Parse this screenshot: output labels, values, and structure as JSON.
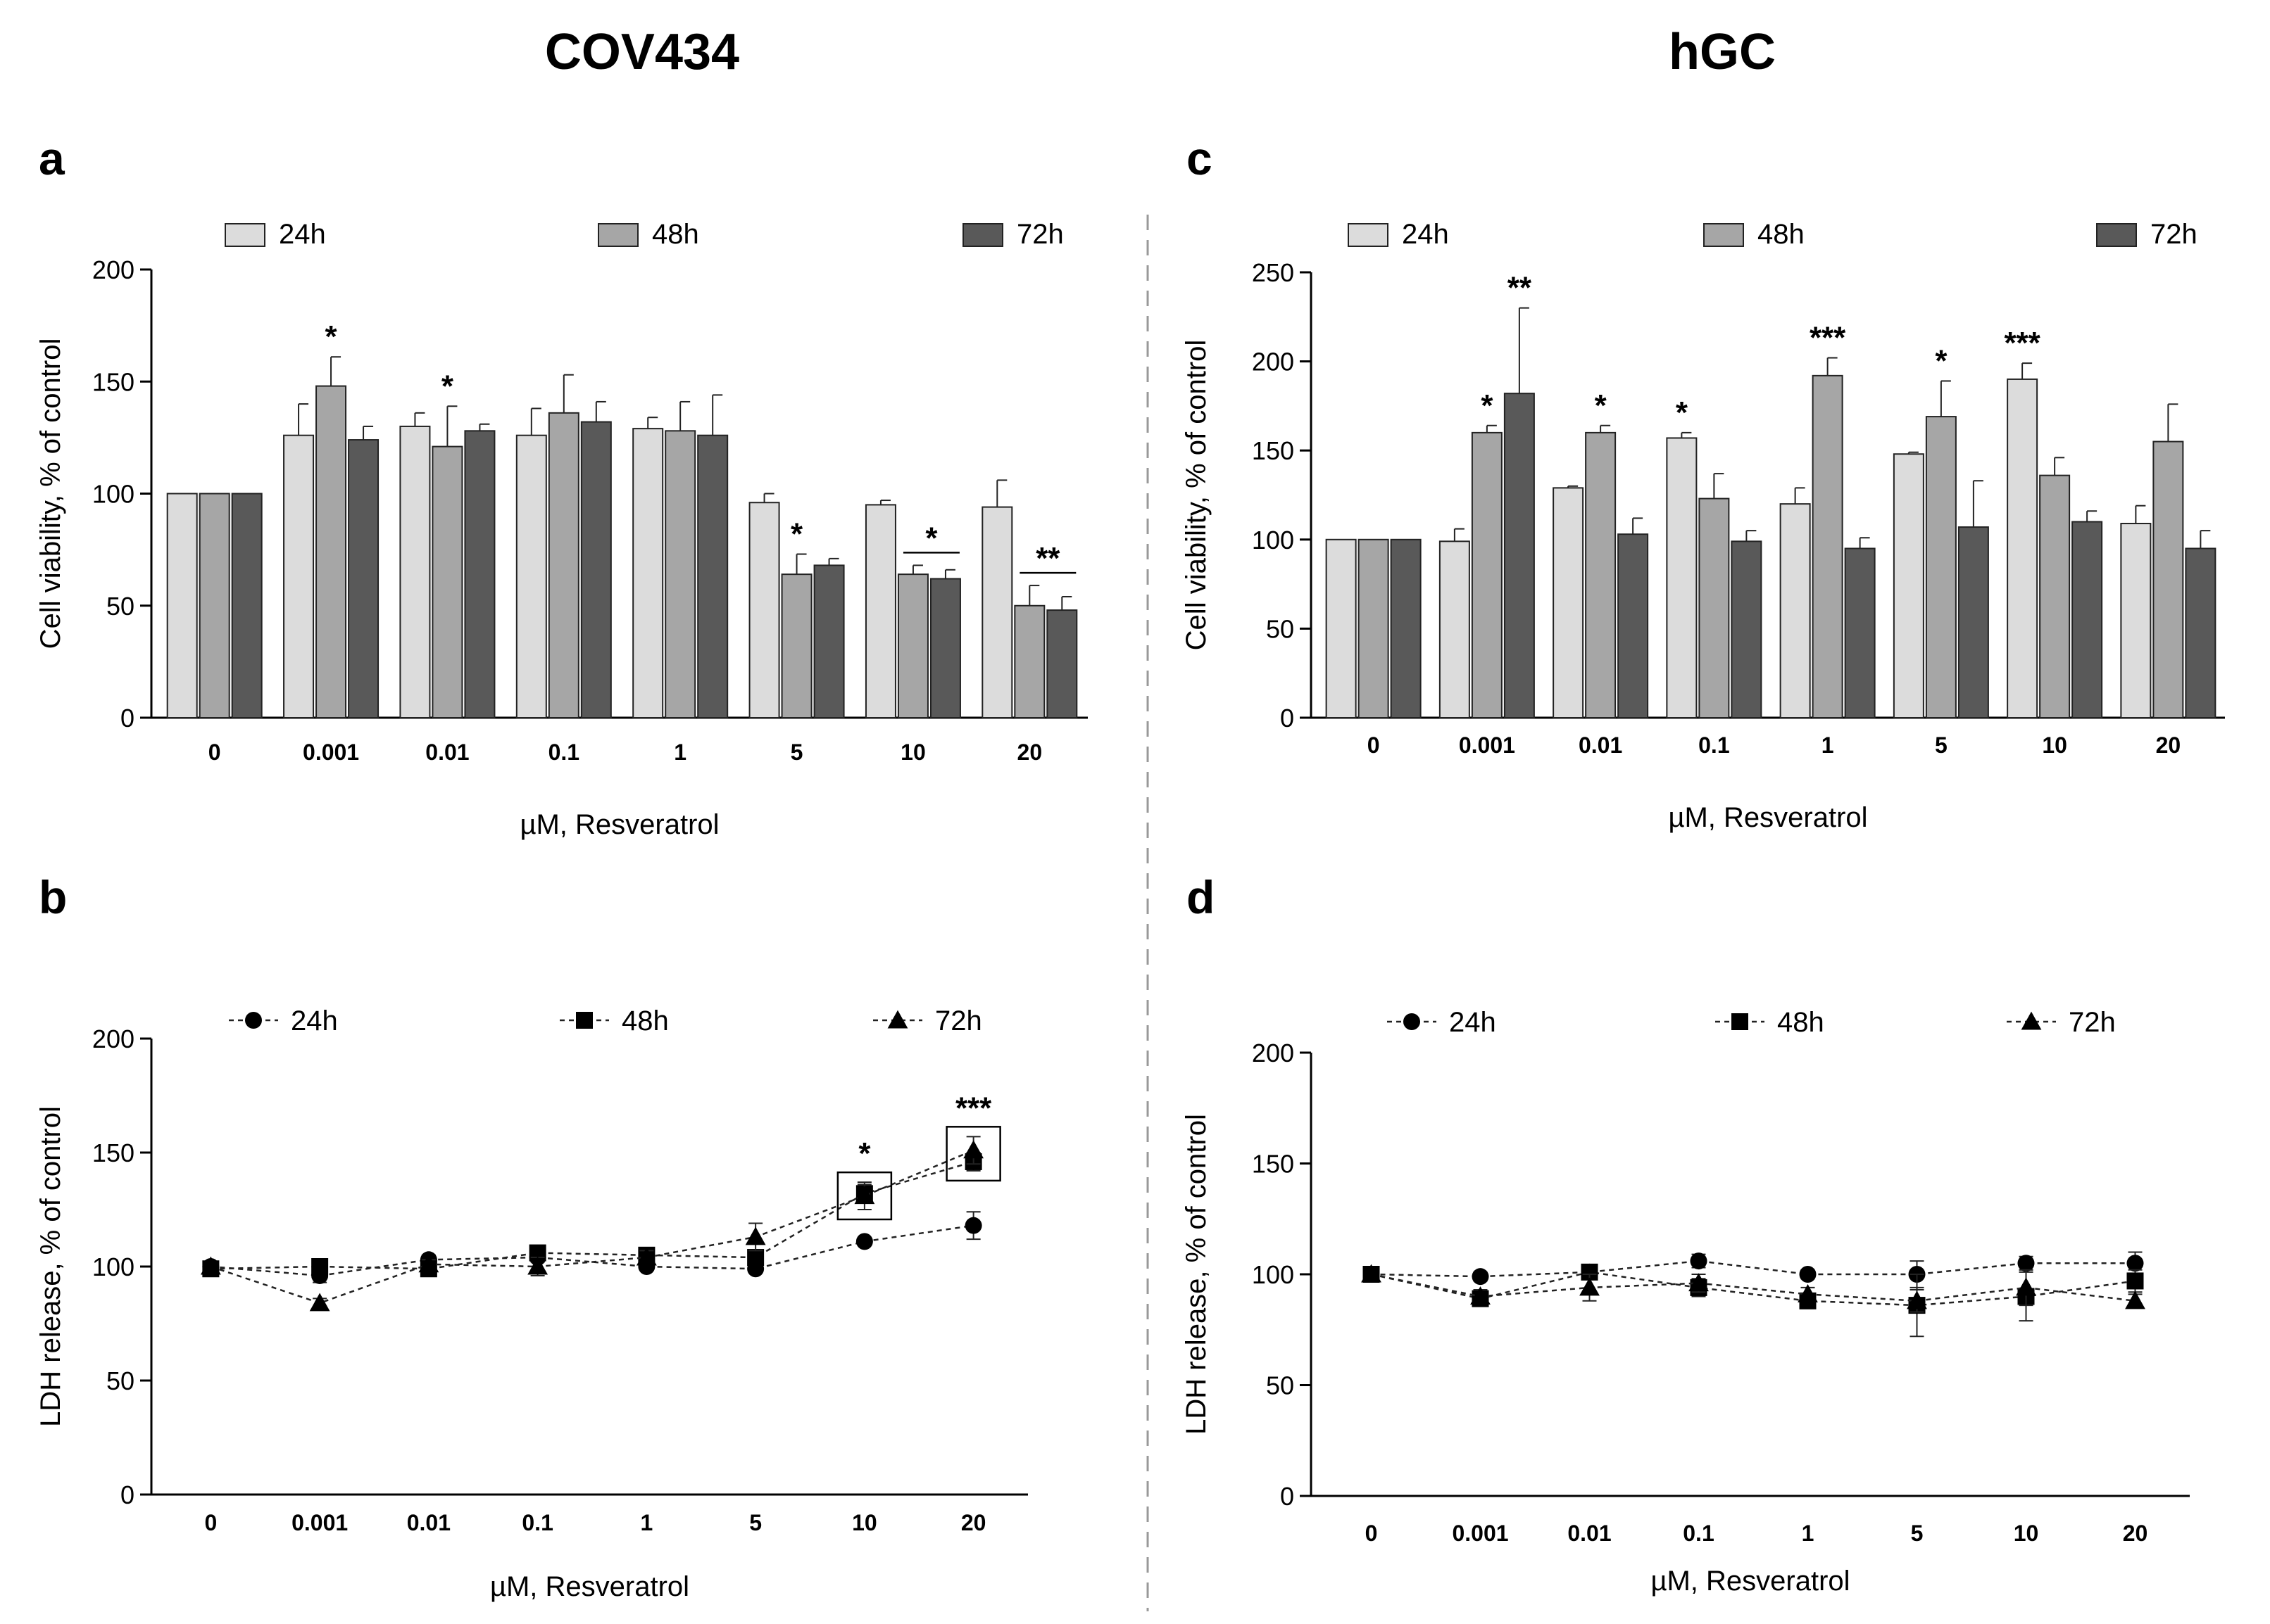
{
  "page": {
    "column_titles": [
      "COV434",
      "hGC"
    ],
    "colors": {
      "24h": "#dcdcdc",
      "48h": "#a6a6a6",
      "72h": "#595959",
      "axis": "#000000",
      "divider": "#999999"
    }
  },
  "chart_data": [
    {
      "panel": "a",
      "type": "bar",
      "title": "",
      "xlabel": "µM, Resveratrol",
      "ylabel": "Cell viability, % of control",
      "ylim": [
        0,
        200
      ],
      "yticks": [
        0,
        50,
        100,
        150,
        200
      ],
      "categories": [
        "0",
        "0.001",
        "0.01",
        "0.1",
        "1",
        "5",
        "10",
        "20"
      ],
      "legend": [
        "24h",
        "48h",
        "72h"
      ],
      "series": [
        {
          "name": "24h",
          "values": [
            100,
            126,
            130,
            126,
            129,
            96,
            95,
            94
          ],
          "errors": [
            0,
            14,
            6,
            12,
            5,
            4,
            2,
            12
          ]
        },
        {
          "name": "48h",
          "values": [
            100,
            148,
            121,
            136,
            128,
            64,
            64,
            50
          ],
          "errors": [
            0,
            13,
            18,
            17,
            13,
            9,
            4,
            9
          ]
        },
        {
          "name": "72h",
          "values": [
            100,
            124,
            128,
            132,
            126,
            68,
            62,
            48
          ],
          "errors": [
            0,
            6,
            3,
            9,
            18,
            3,
            4,
            6
          ]
        }
      ],
      "annotations": [
        {
          "label": "*",
          "category": "0.001",
          "series": "48h"
        },
        {
          "label": "*",
          "category": "0.01",
          "series": "48h"
        },
        {
          "label": "*",
          "category": "5",
          "series": "48h"
        },
        {
          "label": "*",
          "category": "10",
          "series": [
            "48h",
            "72h"
          ]
        },
        {
          "label": "**",
          "category": "20",
          "series": [
            "48h",
            "72h"
          ]
        }
      ]
    },
    {
      "panel": "b",
      "type": "line",
      "title": "",
      "xlabel": "µM, Resveratrol",
      "ylabel": "LDH release, % of control",
      "ylim": [
        0,
        200
      ],
      "yticks": [
        0,
        50,
        100,
        150,
        200
      ],
      "categories": [
        "0",
        "0.001",
        "0.01",
        "0.1",
        "1",
        "5",
        "10",
        "20"
      ],
      "legend": [
        "24h",
        "48h",
        "72h"
      ],
      "series": [
        {
          "name": "24h",
          "marker": "circle",
          "values": [
            100,
            96,
            103,
            104,
            100,
            99,
            111,
            118
          ],
          "errors": [
            0,
            3,
            2,
            2,
            1,
            1,
            1,
            6
          ]
        },
        {
          "name": "48h",
          "marker": "square",
          "values": [
            99,
            100,
            99,
            106,
            105,
            104,
            132,
            146
          ],
          "errors": [
            0,
            2,
            2,
            3,
            2,
            2,
            4,
            4
          ]
        },
        {
          "name": "72h",
          "marker": "triangle",
          "values": [
            100,
            84,
            101,
            100,
            104,
            113,
            131,
            151
          ],
          "errors": [
            0,
            2,
            2,
            4,
            3,
            6,
            6,
            6
          ]
        }
      ],
      "annotations": [
        {
          "label": "*",
          "category": "10",
          "boxed": true
        },
        {
          "label": "***",
          "category": "20",
          "boxed": true
        }
      ]
    },
    {
      "panel": "c",
      "type": "bar",
      "title": "",
      "xlabel": "µM, Resveratrol",
      "ylabel": "Cell viability, % of control",
      "ylim": [
        0,
        250
      ],
      "yticks": [
        0,
        50,
        100,
        150,
        200,
        250
      ],
      "categories": [
        "0",
        "0.001",
        "0.01",
        "0.1",
        "1",
        "5",
        "10",
        "20"
      ],
      "legend": [
        "24h",
        "48h",
        "72h"
      ],
      "series": [
        {
          "name": "24h",
          "values": [
            100,
            99,
            129,
            157,
            120,
            148,
            190,
            109
          ],
          "errors": [
            0,
            7,
            1,
            3,
            9,
            1,
            9,
            10
          ]
        },
        {
          "name": "48h",
          "values": [
            100,
            160,
            160,
            123,
            192,
            169,
            136,
            155
          ],
          "errors": [
            0,
            4,
            4,
            14,
            10,
            20,
            10,
            21
          ]
        },
        {
          "name": "72h",
          "values": [
            100,
            182,
            103,
            99,
            95,
            107,
            110,
            95
          ],
          "errors": [
            0,
            48,
            9,
            6,
            6,
            26,
            6,
            10
          ]
        }
      ],
      "annotations": [
        {
          "label": "*",
          "category": "0.001",
          "series": "48h"
        },
        {
          "label": "**",
          "category": "0.001",
          "series": "72h"
        },
        {
          "label": "*",
          "category": "0.01",
          "series": "48h"
        },
        {
          "label": "*",
          "category": "0.1",
          "series": "24h"
        },
        {
          "label": "***",
          "category": "1",
          "series": "48h"
        },
        {
          "label": "*",
          "category": "5",
          "series": "48h"
        },
        {
          "label": "***",
          "category": "10",
          "series": "24h"
        }
      ]
    },
    {
      "panel": "d",
      "type": "line",
      "title": "",
      "xlabel": "µM, Resveratrol",
      "ylabel": "LDH release, % of control",
      "ylim": [
        0,
        200
      ],
      "yticks": [
        0,
        50,
        100,
        150,
        200
      ],
      "categories": [
        "0",
        "0.001",
        "0.01",
        "0.1",
        "1",
        "5",
        "10",
        "20"
      ],
      "legend": [
        "24h",
        "48h",
        "72h"
      ],
      "series": [
        {
          "name": "24h",
          "marker": "circle",
          "values": [
            100,
            99,
            101,
            106,
            100,
            100,
            105,
            105
          ],
          "errors": [
            0,
            2,
            2,
            3,
            2,
            6,
            3,
            5
          ]
        },
        {
          "name": "48h",
          "marker": "square",
          "values": [
            100,
            89,
            101,
            94,
            88,
            86,
            90,
            97
          ],
          "errors": [
            0,
            3,
            3,
            4,
            3,
            14,
            11,
            5
          ]
        },
        {
          "name": "72h",
          "marker": "triangle",
          "values": [
            100,
            90,
            94,
            96,
            91,
            88,
            94,
            88
          ],
          "errors": [
            0,
            3,
            6,
            4,
            3,
            5,
            8,
            3
          ]
        }
      ],
      "annotations": []
    }
  ]
}
